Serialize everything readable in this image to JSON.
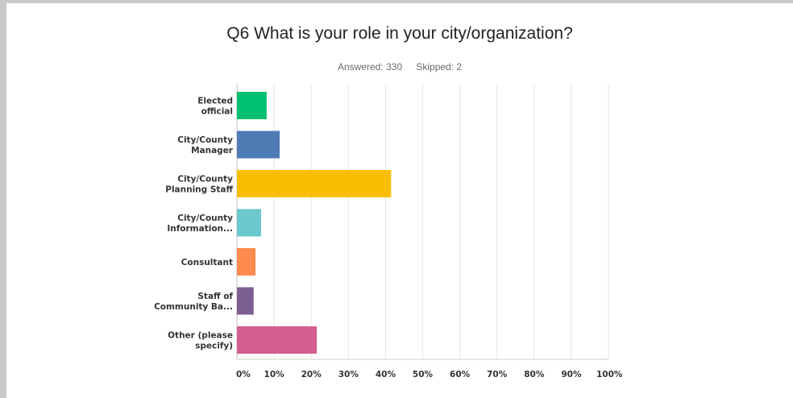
{
  "header": {
    "title": "Q6 What is your role in your city/organization?",
    "answered": "Answered: 330",
    "skipped": "Skipped: 2"
  },
  "chart_data": {
    "type": "bar",
    "orientation": "horizontal",
    "title": "Q6 What is your role in your city/organization?",
    "categories": [
      [
        "Elected",
        "official"
      ],
      [
        "City/County",
        "Manager"
      ],
      [
        "City/County",
        "Planning Staff"
      ],
      [
        "City/County",
        "Information..."
      ],
      [
        "Consultant"
      ],
      [
        "Staff of",
        "Community Ba..."
      ],
      [
        "Other (please",
        "specify)"
      ]
    ],
    "values": [
      8,
      11.5,
      41.5,
      6.5,
      5,
      4.5,
      21.5
    ],
    "colors": [
      "#00bf6f",
      "#507cb6",
      "#f9be00",
      "#6bc8cd",
      "#ff8b4f",
      "#7d5e90",
      "#d25f90"
    ],
    "xlim": [
      0,
      100
    ],
    "ticks": [
      "0%",
      "10%",
      "20%",
      "30%",
      "40%",
      "50%",
      "60%",
      "70%",
      "80%",
      "90%",
      "100%"
    ],
    "grid": true
  }
}
